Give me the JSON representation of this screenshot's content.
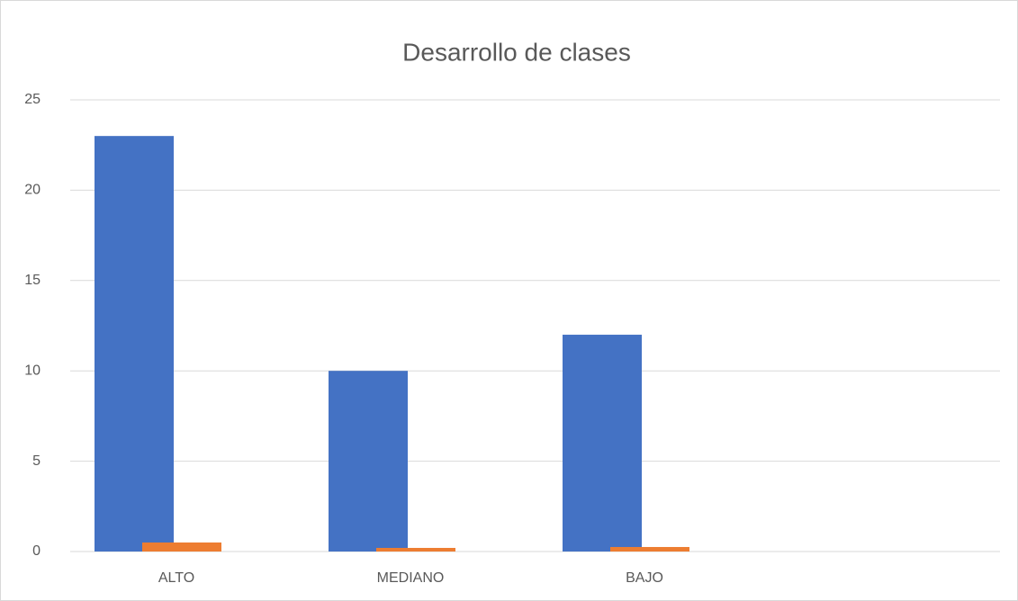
{
  "chart_data": {
    "type": "bar",
    "title": "Desarrollo de clases",
    "categories": [
      "ALTO",
      "MEDIANO",
      "BAJO",
      null
    ],
    "series": [
      {
        "color": "#4472c4",
        "values": [
          23,
          10,
          12,
          null
        ]
      },
      {
        "color": "#ed7d31",
        "values": [
          0.5,
          0.2,
          0.25,
          null
        ]
      }
    ],
    "ylim": [
      0,
      25
    ],
    "yticks": [
      0,
      5,
      10,
      15,
      20,
      25
    ],
    "grid": true
  }
}
